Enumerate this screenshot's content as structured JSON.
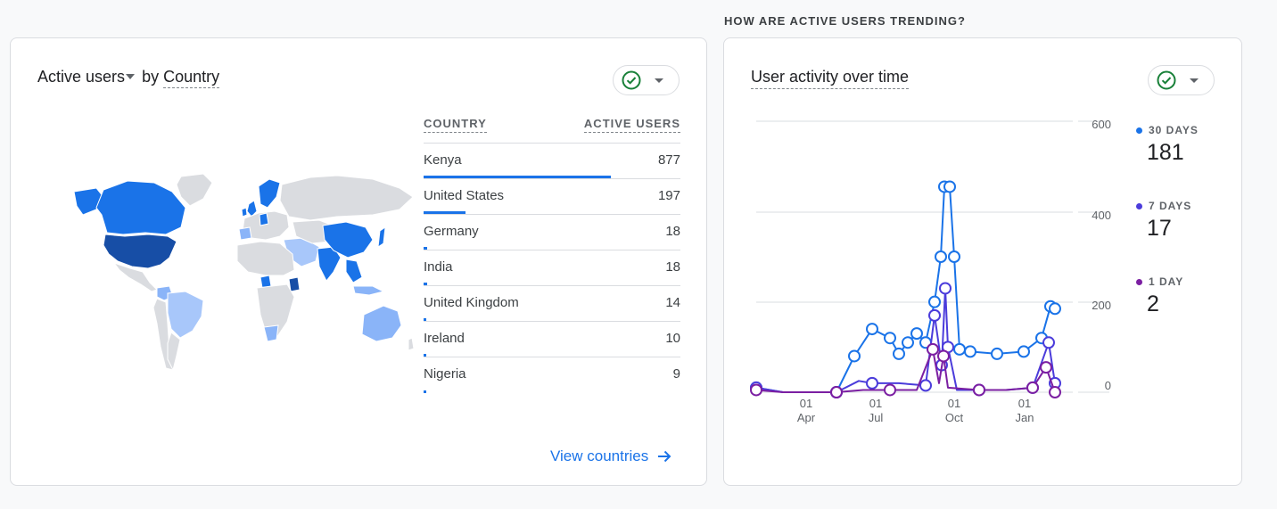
{
  "section_heading": "HOW ARE ACTIVE USERS TRENDING?",
  "country_card": {
    "metric_label": "Active users",
    "by_text": "by",
    "dimension_label": "Country",
    "columns": [
      "COUNTRY",
      "ACTIVE USERS"
    ],
    "rows": [
      {
        "country": "Kenya",
        "users": "877",
        "value": 877
      },
      {
        "country": "United States",
        "users": "197",
        "value": 197
      },
      {
        "country": "Germany",
        "users": "18",
        "value": 18
      },
      {
        "country": "India",
        "users": "18",
        "value": 18
      },
      {
        "country": "United Kingdom",
        "users": "14",
        "value": 14
      },
      {
        "country": "Ireland",
        "users": "10",
        "value": 10
      },
      {
        "country": "Nigeria",
        "users": "9",
        "value": 9
      }
    ],
    "view_link": "View countries"
  },
  "activity_card": {
    "title": "User activity over time",
    "legend": [
      {
        "label": "30 DAYS",
        "value": "181",
        "color": "#1a73e8"
      },
      {
        "label": "7 DAYS",
        "value": "17",
        "color": "#4b3cdb"
      },
      {
        "label": "1 DAY",
        "value": "2",
        "color": "#7b1fa2"
      }
    ]
  },
  "colors": {
    "primary": "#1a73e8",
    "map_dark": "#174ea6",
    "map_mid": "#1a73e8",
    "map_light": "#8ab4f8",
    "map_lighter": "#a8c7fa",
    "map_none": "#dadce0",
    "check_green": "#188038"
  },
  "chart_data": {
    "type": "line",
    "y_ticks": [
      "600",
      "400",
      "200",
      "0"
    ],
    "x_ticks": [
      {
        "day": "01",
        "month": "Apr"
      },
      {
        "day": "01",
        "month": "Jul"
      },
      {
        "day": "01",
        "month": "Oct"
      },
      {
        "day": "01",
        "month": "Jan"
      }
    ],
    "ylim": [
      0,
      600
    ],
    "series": [
      {
        "name": "30 DAYS",
        "color": "#1a73e8",
        "points": [
          [
            0,
            10
          ],
          [
            30,
            0
          ],
          [
            90,
            0
          ],
          [
            110,
            80
          ],
          [
            130,
            140
          ],
          [
            150,
            120
          ],
          [
            160,
            85
          ],
          [
            170,
            110
          ],
          [
            180,
            130
          ],
          [
            190,
            110
          ],
          [
            200,
            200
          ],
          [
            207,
            300
          ],
          [
            211,
            455
          ],
          [
            217,
            455
          ],
          [
            222,
            300
          ],
          [
            228,
            95
          ],
          [
            240,
            90
          ],
          [
            270,
            85
          ],
          [
            300,
            90
          ],
          [
            320,
            120
          ],
          [
            330,
            190
          ],
          [
            335,
            185
          ]
        ]
      },
      {
        "name": "7 DAYS",
        "color": "#4b3cdb",
        "points": [
          [
            0,
            10
          ],
          [
            30,
            0
          ],
          [
            90,
            0
          ],
          [
            115,
            25
          ],
          [
            130,
            20
          ],
          [
            160,
            20
          ],
          [
            190,
            15
          ],
          [
            200,
            170
          ],
          [
            208,
            60
          ],
          [
            212,
            230
          ],
          [
            215,
            100
          ],
          [
            225,
            5
          ],
          [
            250,
            5
          ],
          [
            280,
            5
          ],
          [
            310,
            10
          ],
          [
            328,
            110
          ],
          [
            335,
            20
          ]
        ]
      },
      {
        "name": "1 DAY",
        "color": "#7b1fa2",
        "points": [
          [
            0,
            5
          ],
          [
            30,
            0
          ],
          [
            90,
            0
          ],
          [
            120,
            5
          ],
          [
            150,
            5
          ],
          [
            180,
            5
          ],
          [
            198,
            95
          ],
          [
            205,
            20
          ],
          [
            210,
            80
          ],
          [
            215,
            10
          ],
          [
            250,
            5
          ],
          [
            280,
            5
          ],
          [
            310,
            10
          ],
          [
            325,
            55
          ],
          [
            335,
            0
          ]
        ]
      }
    ]
  }
}
